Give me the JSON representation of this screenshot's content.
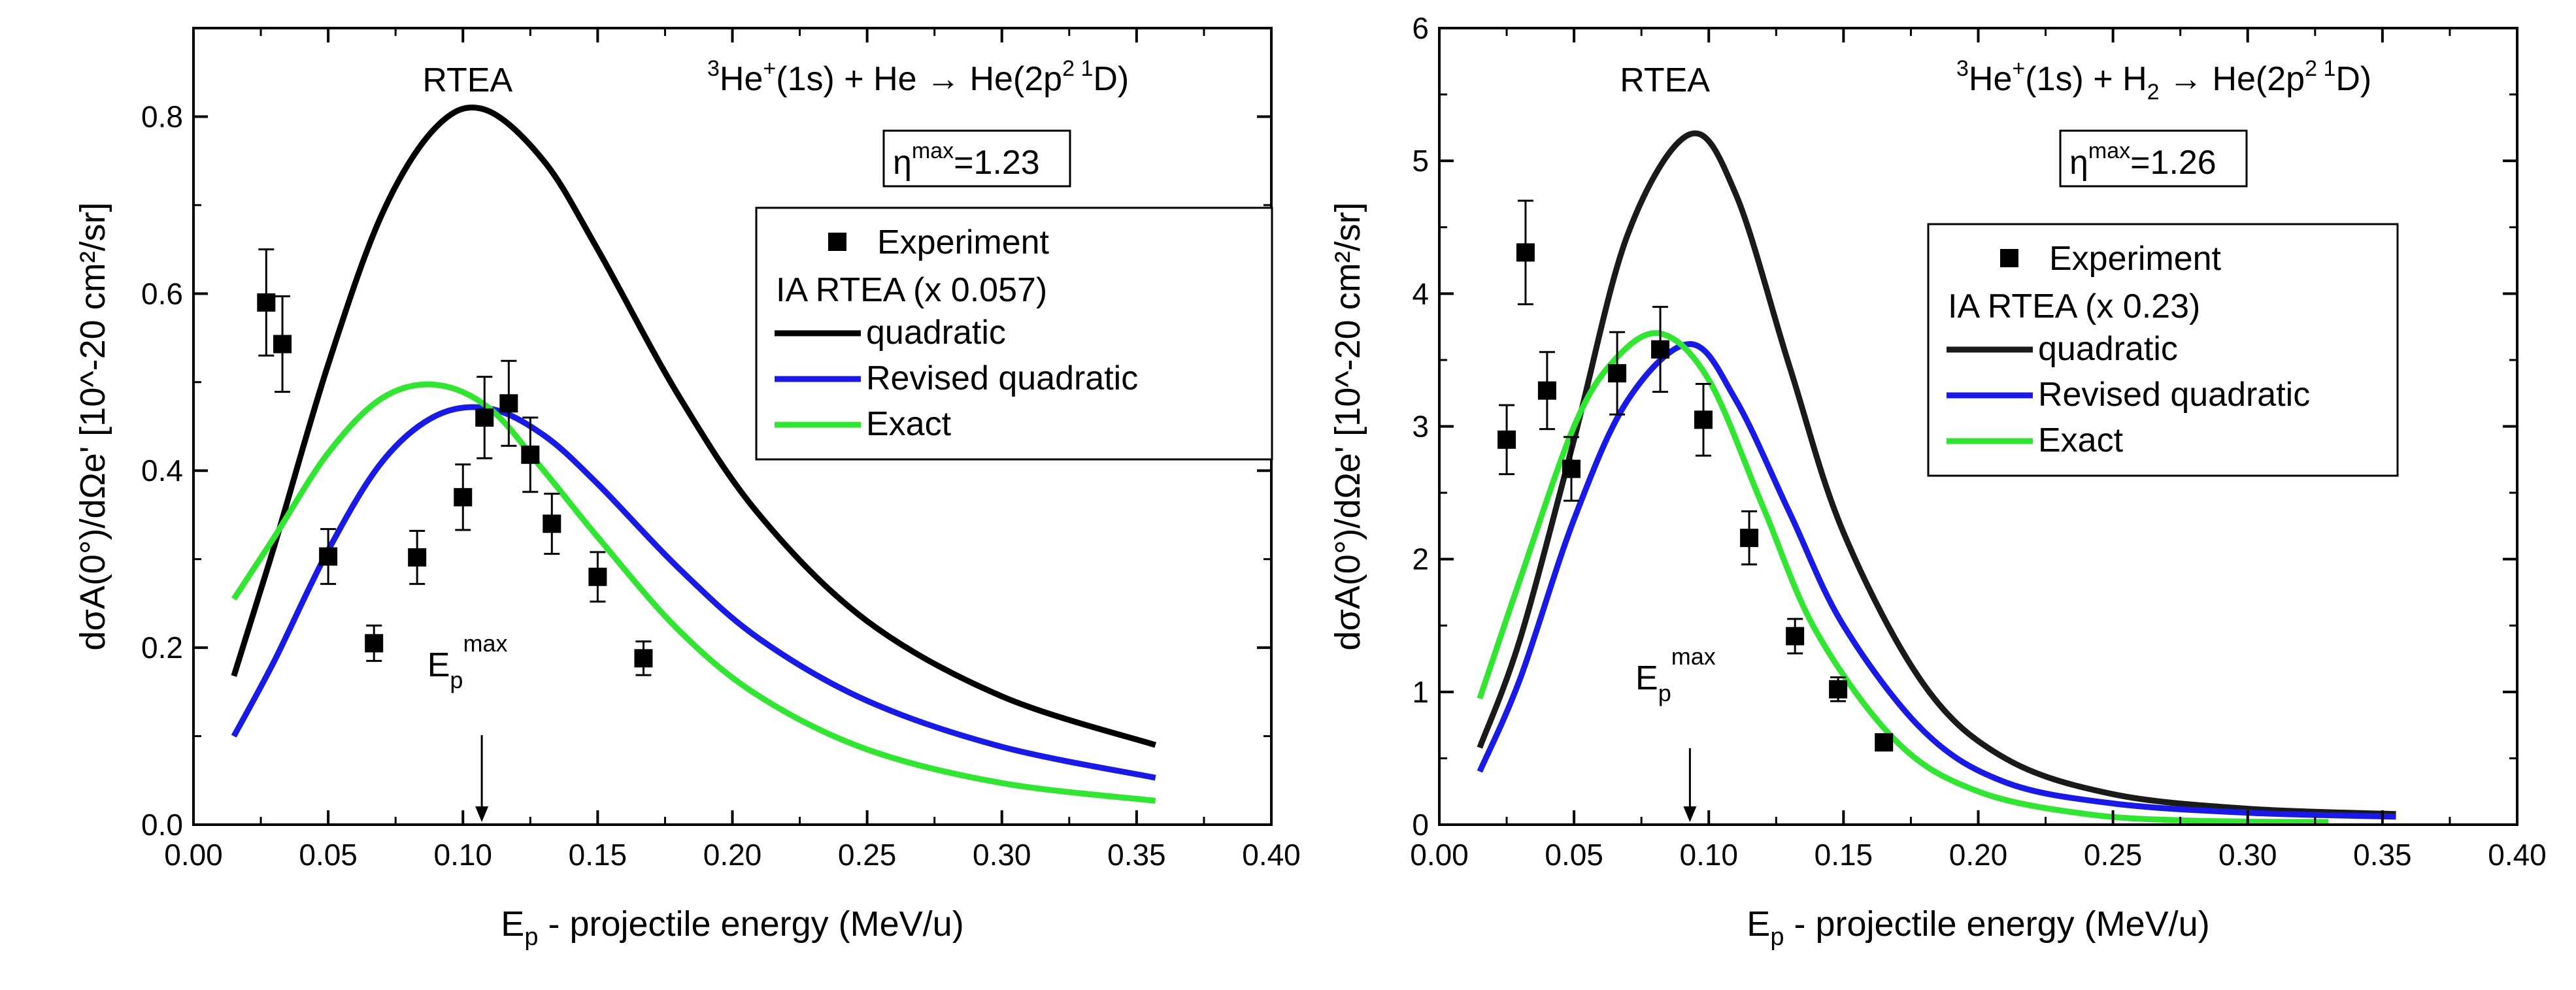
{
  "chart_data": [
    {
      "type": "scatter",
      "id": "left",
      "title": "RTEA",
      "reaction": {
        "projectile": "He",
        "mass": "3",
        "charge": "+",
        "state": "(1s)",
        "plus": " + ",
        "target": "He",
        "target_sub": "",
        "arrow": "→",
        "product": " He(2p",
        "p_exp": "2",
        "term": " 1",
        "term_letter": "D)"
      },
      "eta_max": {
        "symbol": "η",
        "sup": "max",
        "value": "=1.23"
      },
      "epmax_label": {
        "main": "E",
        "sub": "p",
        "sup": "max"
      },
      "epmax_x": 0.107,
      "xlabel": "E",
      "xlabel_sub": "p",
      "xlabel_rest": "- projectile energy (MeV/u)",
      "ylabel": "dσA(0°)/dΩe' [10^-20 cm²/sr]",
      "xlim": [
        0.0,
        0.4
      ],
      "ylim": [
        0.0,
        0.9
      ],
      "xticks": [
        "0.00",
        "0.05",
        "0.10",
        "0.15",
        "0.20",
        "0.25",
        "0.30",
        "0.35",
        "0.40"
      ],
      "yticks": [
        "0.0",
        "0.2",
        "0.4",
        "0.6",
        "0.8"
      ],
      "legend": {
        "experiment": "Experiment",
        "header": "IA  RTEA (x 0.057)",
        "items": [
          "quadratic",
          "Revised quadratic",
          "Exact"
        ]
      },
      "experiment": {
        "x": [
          0.027,
          0.033,
          0.05,
          0.067,
          0.083,
          0.1,
          0.108,
          0.117,
          0.125,
          0.133,
          0.15,
          0.167
        ],
        "y": [
          0.59,
          0.543,
          0.303,
          0.205,
          0.302,
          0.37,
          0.46,
          0.476,
          0.418,
          0.34,
          0.28,
          0.188
        ],
        "err": [
          0.06,
          0.054,
          0.031,
          0.02,
          0.03,
          0.037,
          0.046,
          0.048,
          0.042,
          0.034,
          0.028,
          0.019
        ]
      },
      "series": [
        {
          "name": "quadratic",
          "color": "#000000",
          "x": [
            0.015,
            0.03,
            0.05,
            0.07,
            0.09,
            0.108,
            0.13,
            0.15,
            0.18,
            0.21,
            0.25,
            0.3,
            0.357
          ],
          "y": [
            0.168,
            0.315,
            0.52,
            0.69,
            0.788,
            0.808,
            0.75,
            0.65,
            0.485,
            0.35,
            0.23,
            0.145,
            0.09
          ]
        },
        {
          "name": "Revised quadratic",
          "color": "#1a1ae6",
          "x": [
            0.015,
            0.03,
            0.05,
            0.07,
            0.09,
            0.11,
            0.13,
            0.15,
            0.18,
            0.21,
            0.25,
            0.3,
            0.357
          ],
          "y": [
            0.1,
            0.185,
            0.31,
            0.41,
            0.462,
            0.47,
            0.44,
            0.385,
            0.29,
            0.21,
            0.14,
            0.088,
            0.053
          ]
        },
        {
          "name": "Exact",
          "color": "#33e533",
          "x": [
            0.015,
            0.03,
            0.05,
            0.07,
            0.09,
            0.11,
            0.13,
            0.15,
            0.18,
            0.21,
            0.25,
            0.3,
            0.357
          ],
          "y": [
            0.255,
            0.325,
            0.42,
            0.482,
            0.497,
            0.47,
            0.4,
            0.325,
            0.22,
            0.145,
            0.085,
            0.047,
            0.027
          ]
        }
      ]
    },
    {
      "type": "scatter",
      "id": "right",
      "title": "RTEA",
      "reaction": {
        "projectile": "He",
        "mass": "3",
        "charge": "+",
        "state": "(1s)",
        "plus": " + ",
        "target": "H",
        "target_sub": "2",
        "arrow": "→",
        "product": " He(2p",
        "p_exp": "2",
        "term": " 1",
        "term_letter": "D)"
      },
      "eta_max": {
        "symbol": "η",
        "sup": "max",
        "value": "=1.26"
      },
      "epmax_label": {
        "main": "E",
        "sub": "p",
        "sup": "max"
      },
      "epmax_x": 0.093,
      "xlabel": "E",
      "xlabel_sub": "p",
      "xlabel_rest": "- projectile energy (MeV/u)",
      "ylabel": "dσA(0°)/dΩe' [10^-20 cm²/sr]",
      "xlim": [
        0.0,
        0.4
      ],
      "ylim": [
        0.0,
        6.0
      ],
      "xticks": [
        "0.00",
        "0.05",
        "0.10",
        "0.15",
        "0.20",
        "0.25",
        "0.30",
        "0.35",
        "0.40"
      ],
      "yticks": [
        "0",
        "1",
        "2",
        "3",
        "4",
        "5",
        "6"
      ],
      "legend": {
        "experiment": "Experiment",
        "header": "IA  RTEA (x 0.23)",
        "items": [
          "quadratic",
          "Revised quadratic",
          "Exact"
        ]
      },
      "experiment": {
        "x": [
          0.025,
          0.032,
          0.04,
          0.049,
          0.066,
          0.082,
          0.098,
          0.115,
          0.132,
          0.148,
          0.165
        ],
        "y": [
          2.9,
          4.31,
          3.27,
          2.68,
          3.4,
          3.58,
          3.05,
          2.16,
          1.42,
          1.02,
          0.62
        ],
        "err": [
          0.26,
          0.39,
          0.29,
          0.24,
          0.31,
          0.32,
          0.27,
          0.2,
          0.13,
          0.09,
          0.0
        ]
      },
      "series": [
        {
          "name": "quadratic",
          "color": "#1a1a1a",
          "x": [
            0.015,
            0.03,
            0.05,
            0.07,
            0.093,
            0.11,
            0.13,
            0.15,
            0.18,
            0.21,
            0.25,
            0.3,
            0.355
          ],
          "y": [
            0.58,
            1.4,
            2.9,
            4.45,
            5.2,
            4.75,
            3.45,
            2.2,
            1.05,
            0.5,
            0.23,
            0.12,
            0.08
          ]
        },
        {
          "name": "Revised quadratic",
          "color": "#1a1ae6",
          "x": [
            0.015,
            0.03,
            0.05,
            0.07,
            0.093,
            0.11,
            0.13,
            0.15,
            0.18,
            0.21,
            0.25,
            0.3,
            0.355
          ],
          "y": [
            0.4,
            1.1,
            2.3,
            3.2,
            3.62,
            3.2,
            2.35,
            1.5,
            0.7,
            0.32,
            0.16,
            0.09,
            0.06
          ]
        },
        {
          "name": "Exact",
          "color": "#33e533",
          "x": [
            0.015,
            0.03,
            0.05,
            0.065,
            0.082,
            0.1,
            0.12,
            0.14,
            0.17,
            0.2,
            0.24,
            0.28,
            0.33
          ],
          "y": [
            0.95,
            1.85,
            3.0,
            3.5,
            3.7,
            3.35,
            2.4,
            1.45,
            0.62,
            0.25,
            0.08,
            0.03,
            0.02
          ]
        }
      ]
    }
  ]
}
